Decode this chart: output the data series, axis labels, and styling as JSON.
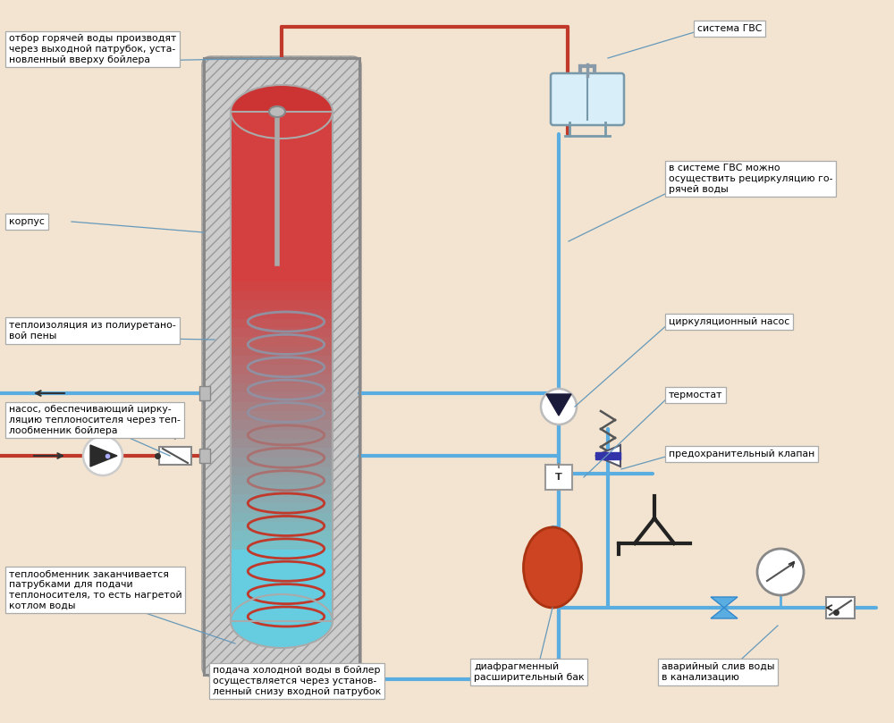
{
  "bg_color": "#f2e4d0",
  "pipe_hot": "#c0392b",
  "pipe_cold": "#5aade0",
  "pipe_lw": 3.0,
  "anno_lw": 0.9,
  "anno_color": "#6699bb",
  "labels": {
    "otbor": "отбор горячей воды производят\nчерез выходной патрубок, уста-\nновленный вверху бойлера",
    "korpus": "корпус",
    "teploizol": "теплоизоляция из полиуретано-\nвой пены",
    "nasos_circ": "насос, обеспечивающий цирку-\nляцию теплоносителя через теп-\nлообменник бойлера",
    "teplo_end": "теплообменник заканчивается\nпатрубками для подачи\nтеплоносителя, то есть нагретой\nкотлом воды",
    "podacha": "подача холодной воды в бойлер\nосуществляется через установ-\nленный снизу входной патрубок",
    "sistema_gvs": "система ГВС",
    "gvs_recirc": "в системе ГВС можно\nосуществить рециркуляцию го-\nрячей воды",
    "circ_nasos": "циркуляционный насос",
    "termostat": "термостат",
    "pred_klapan": "предохранительный клапан",
    "diafragm": "диафрагменный\nрасширительный бак",
    "avariyny": "аварийный слив воды\nв канализацию"
  }
}
